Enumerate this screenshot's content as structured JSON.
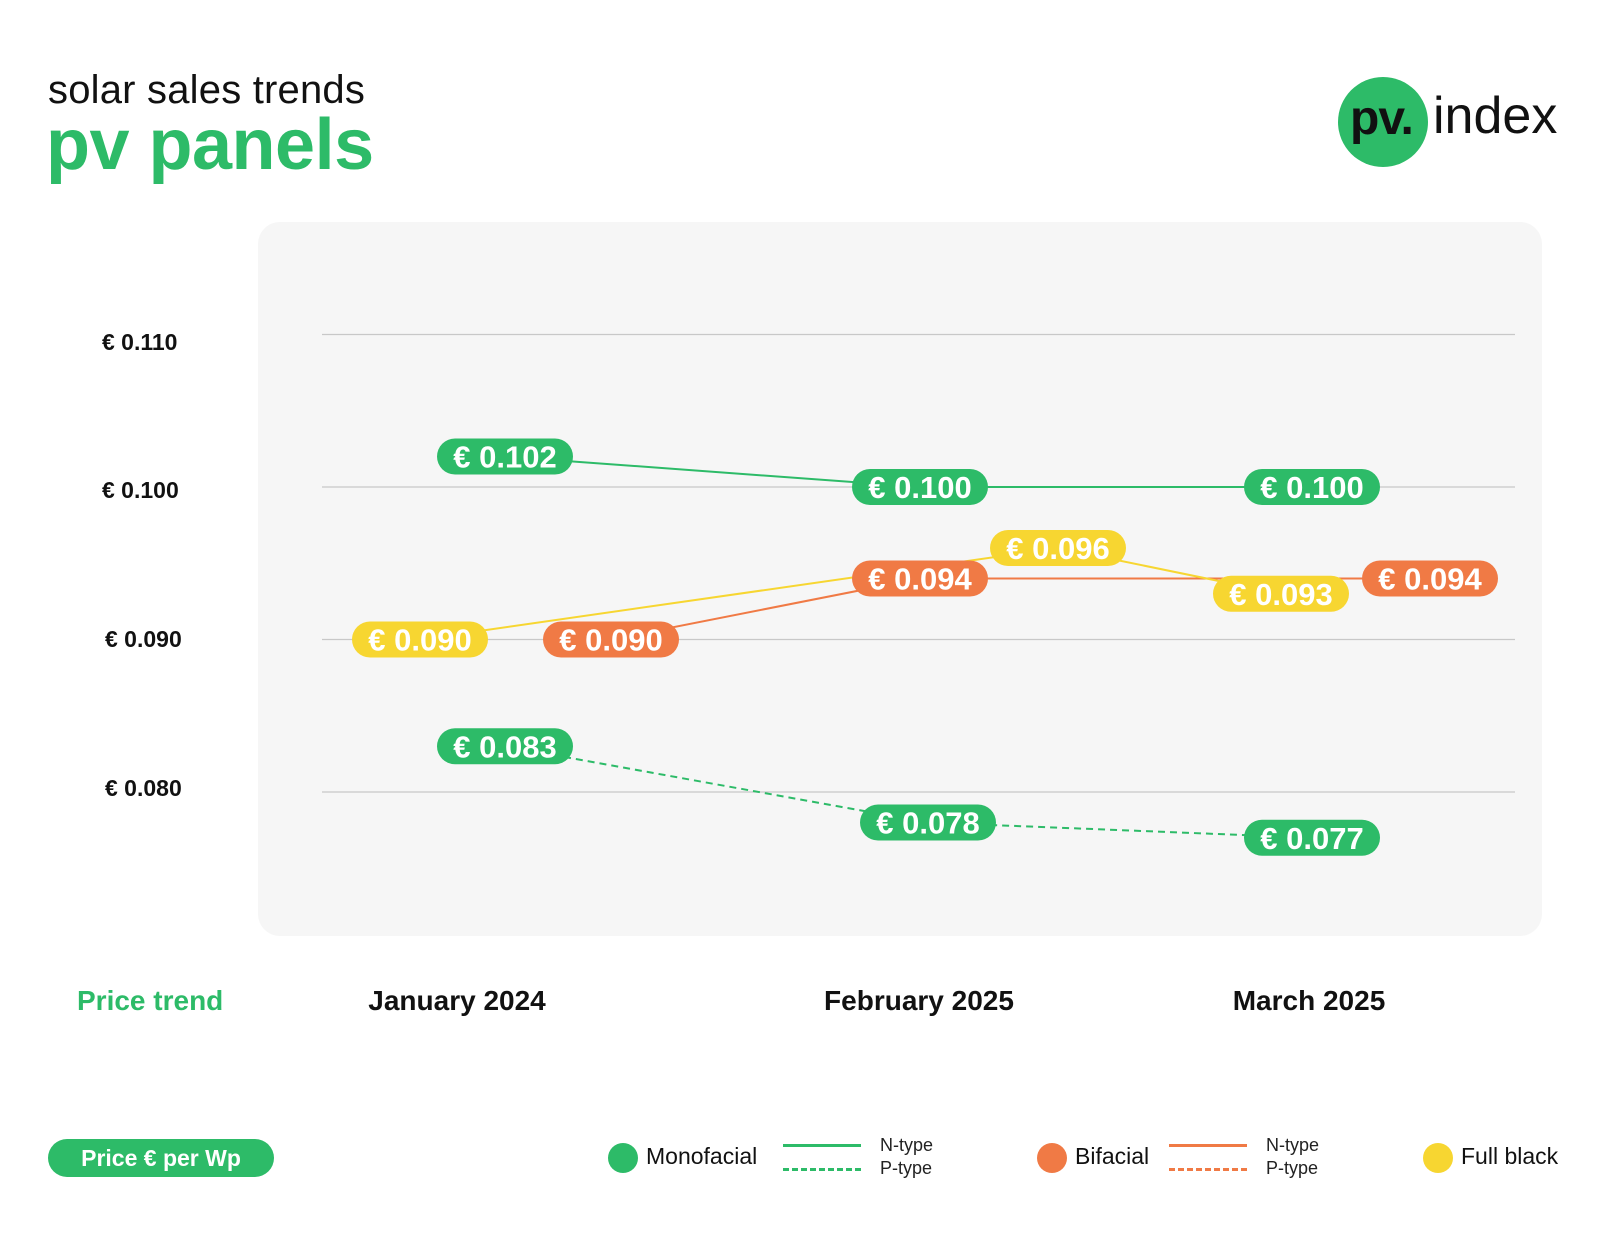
{
  "header": {
    "subtitle": "solar sales trends",
    "title": "pv panels",
    "logo_mark": "pv.",
    "logo_word": "index"
  },
  "colors": {
    "green": "#2dbb68",
    "orange": "#f07a45",
    "yellow": "#f7d631",
    "panel_bg": "#f6f6f6"
  },
  "footer": {
    "trend_label": "Price trend",
    "unit_label": "Price € per Wp"
  },
  "legend": {
    "monofacial": "Monofacial",
    "bifacial": "Bifacial",
    "full_black": "Full black",
    "n_type": "N-type",
    "p_type": "P-type"
  },
  "chart_data": {
    "type": "line",
    "categories": [
      "January 2024",
      "February 2025",
      "March 2025"
    ],
    "y_ticks": [
      "€ 0.110",
      "€ 0.100",
      "€ 0.090",
      "€ 0.080"
    ],
    "ylim": [
      0.074,
      0.114
    ],
    "grid": true,
    "legend_placement": "bottom",
    "series": [
      {
        "name": "Monofacial N-type",
        "color": "#2dbb68",
        "dashed": false,
        "values": [
          0.102,
          0.1,
          0.1
        ],
        "labels": [
          "€ 0.102",
          "€ 0.100",
          "€ 0.100"
        ]
      },
      {
        "name": "Monofacial P-type",
        "color": "#2dbb68",
        "dashed": true,
        "values": [
          0.083,
          0.078,
          0.077
        ],
        "labels": [
          "€ 0.083",
          "€ 0.078",
          "€ 0.077"
        ]
      },
      {
        "name": "Bifacial N-type",
        "color": "#f07a45",
        "dashed": false,
        "values": [
          0.09,
          0.094,
          0.094
        ],
        "labels": [
          "€ 0.090",
          "€ 0.094",
          "€ 0.094"
        ]
      },
      {
        "name": "Full black",
        "color": "#f7d631",
        "dashed": false,
        "values": [
          0.09,
          0.096,
          0.093
        ],
        "labels": [
          "€ 0.090",
          "€ 0.096",
          "€ 0.093"
        ]
      }
    ]
  }
}
